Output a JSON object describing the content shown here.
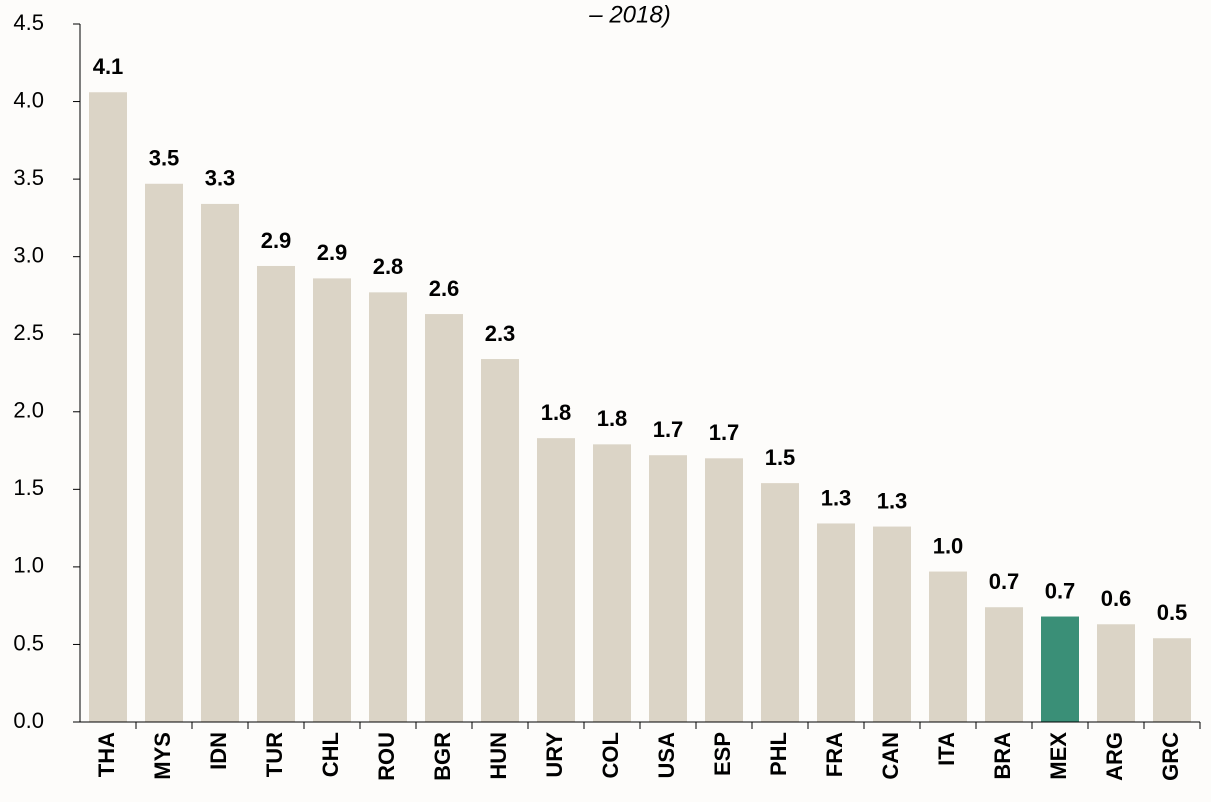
{
  "chart_data": {
    "type": "bar",
    "title": "– 2018)",
    "categories": [
      "THA",
      "MYS",
      "IDN",
      "TUR",
      "CHL",
      "ROU",
      "BGR",
      "HUN",
      "URY",
      "COL",
      "USA",
      "ESP",
      "PHL",
      "FRA",
      "CAN",
      "ITA",
      "BRA",
      "MEX",
      "ARG",
      "GRC"
    ],
    "values": [
      4.06,
      3.47,
      3.34,
      2.94,
      2.86,
      2.77,
      2.63,
      2.34,
      1.83,
      1.79,
      1.72,
      1.7,
      1.54,
      1.28,
      1.26,
      0.97,
      0.74,
      0.68,
      0.63,
      0.54
    ],
    "value_labels": [
      "4.1",
      "3.5",
      "3.3",
      "2.9",
      "2.9",
      "2.8",
      "2.6",
      "2.3",
      "1.8",
      "1.8",
      "1.7",
      "1.7",
      "1.5",
      "1.3",
      "1.3",
      "1.0",
      "0.7",
      "0.7",
      "0.6",
      "0.5"
    ],
    "colors": [
      "#dbd4c6",
      "#dbd4c6",
      "#dbd4c6",
      "#dbd4c6",
      "#dbd4c6",
      "#dbd4c6",
      "#dbd4c6",
      "#dbd4c6",
      "#dbd4c6",
      "#dbd4c6",
      "#dbd4c6",
      "#dbd4c6",
      "#dbd4c6",
      "#dbd4c6",
      "#dbd4c6",
      "#dbd4c6",
      "#dbd4c6",
      "#3a8f77",
      "#dbd4c6",
      "#dbd4c6"
    ],
    "ylim": [
      0,
      4.5
    ],
    "yticks": [
      {
        "value": 0,
        "label": "0.0"
      },
      0.5,
      {
        "value": 1,
        "label": "1.0"
      },
      1.5,
      {
        "value": 2,
        "label": "2.0"
      },
      2.5,
      {
        "value": 3,
        "label": "3.0"
      },
      3.5,
      {
        "value": 4,
        "label": "4.0"
      },
      4.5
    ],
    "grid": false
  }
}
